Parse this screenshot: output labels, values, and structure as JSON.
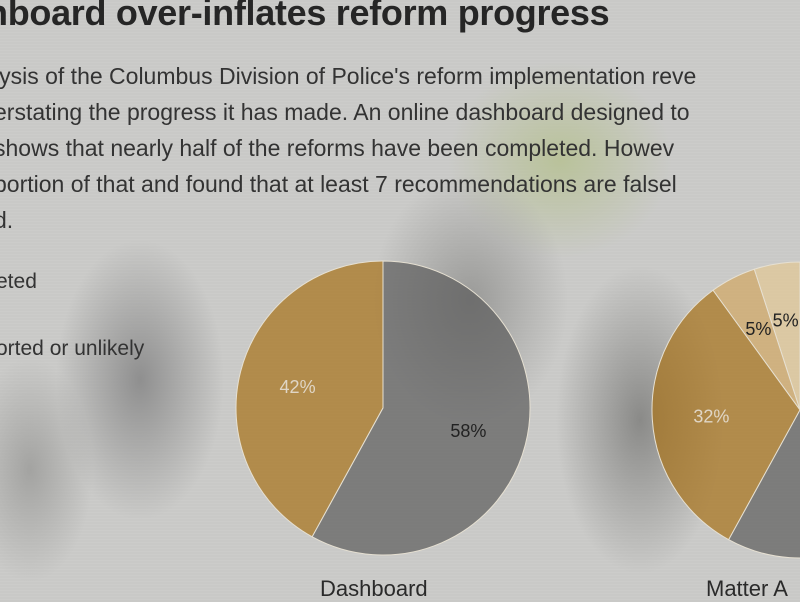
{
  "title": "hboard over-inflates reform progress",
  "body_lines": [
    "lysis of the Columbus Division of Police's reform implementation reve",
    "erstating the progress it has made. An online dashboard designed to",
    " shows that nearly half of the reforms have been completed. Howev",
    "portion of that and found that at least 7 recommendations are falsel",
    "d."
  ],
  "legend": [
    "eted",
    "orted or unlikely"
  ],
  "colors": {
    "completed": "#a8731c",
    "remaining": "#5e5e5e",
    "light1": "#d1a765",
    "light2": "#e2c896"
  },
  "chart_data": [
    {
      "type": "pie",
      "title": "Dashboard",
      "slices": [
        {
          "label": "42%",
          "value": 42,
          "color": "#a8731c"
        },
        {
          "label": "58%",
          "value": 58,
          "color": "#5e5e5e"
        }
      ]
    },
    {
      "type": "pie",
      "title": "Matter A",
      "slices": [
        {
          "label": "5%",
          "value": 5,
          "color": "#e2c896"
        },
        {
          "label": "5%",
          "value": 5,
          "color": "#d1a765"
        },
        {
          "label": "32%",
          "value": 32,
          "color": "#a8731c"
        }
      ]
    }
  ]
}
